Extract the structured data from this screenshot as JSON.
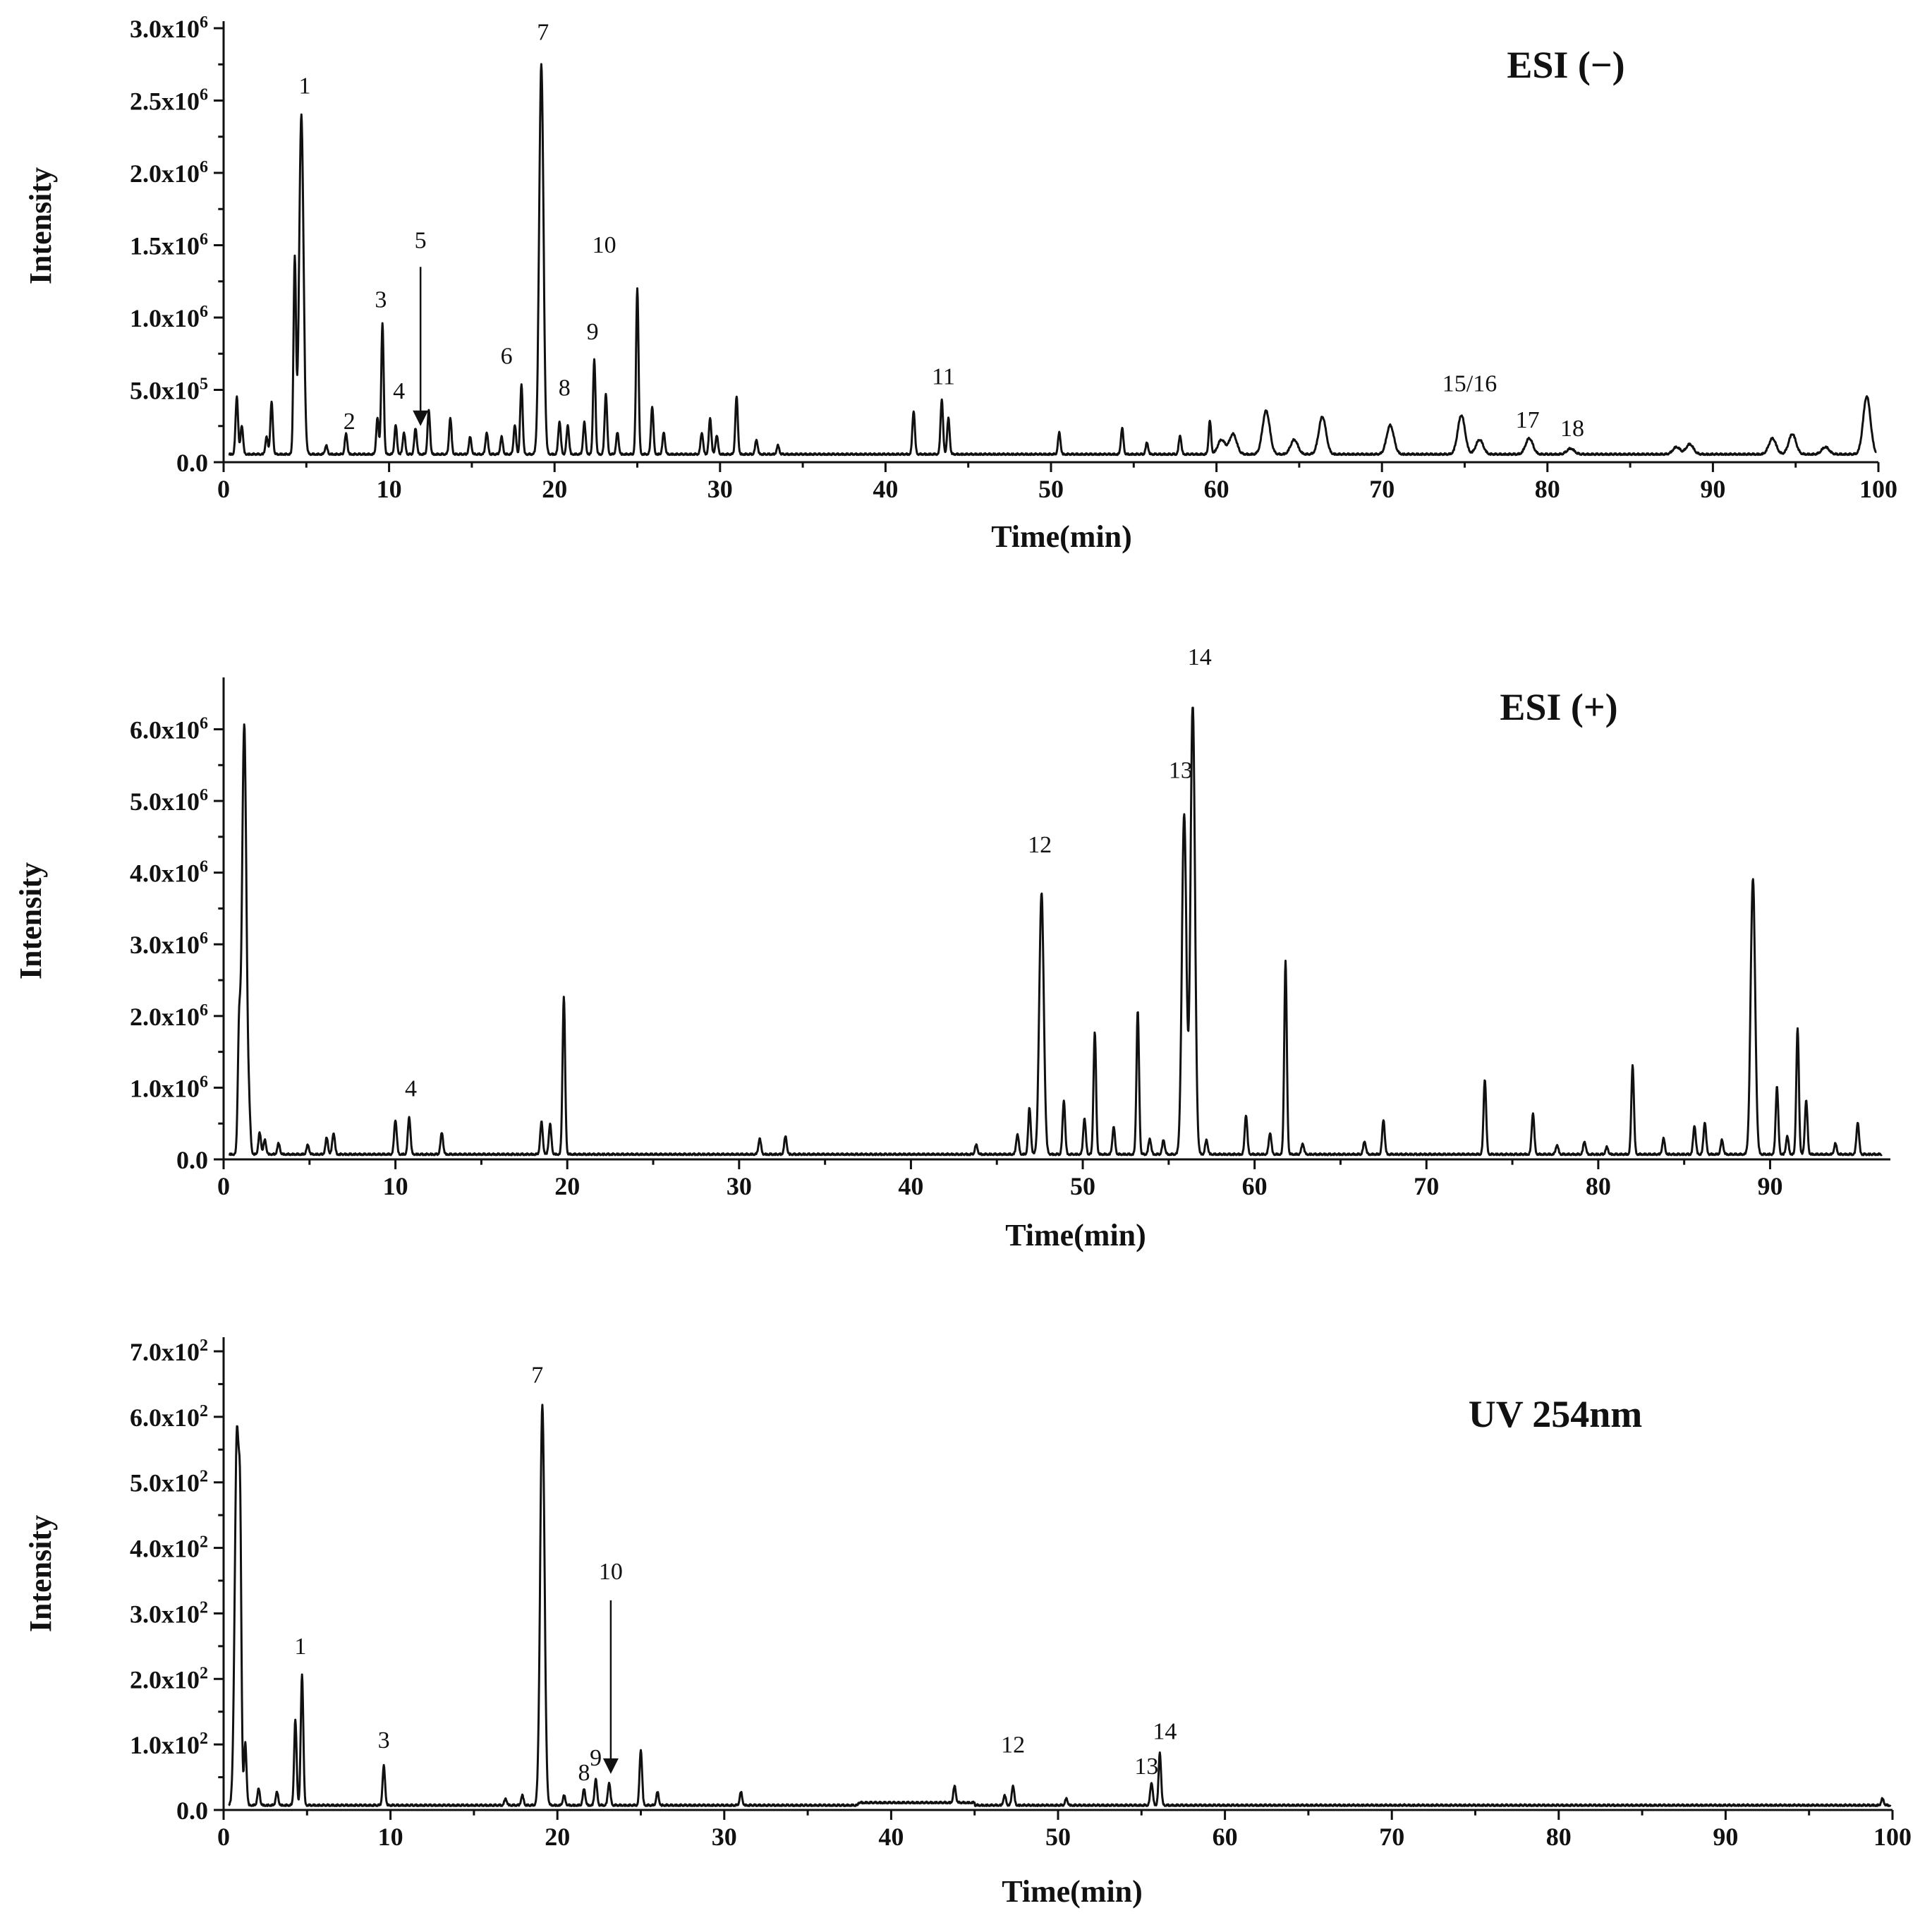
{
  "chart_data": [
    {
      "type": "line",
      "title": "ESI (−)",
      "xlabel": "Time(min)",
      "ylabel": "Intensity",
      "xlim": [
        0,
        100
      ],
      "ylim": [
        0,
        3000000
      ],
      "xticks": [
        0,
        10,
        20,
        30,
        40,
        50,
        60,
        70,
        80,
        90,
        100
      ],
      "xtick_labels": [
        "0",
        "10",
        "20",
        "30",
        "40",
        "50",
        "60",
        "70",
        "80",
        "90",
        "100"
      ],
      "yticks": [
        0,
        500000,
        1000000,
        1500000,
        2000000,
        2500000,
        3000000
      ],
      "ytick_labels": [
        {
          "mant": "0.0",
          "exp": ""
        },
        {
          "mant": "5.0x10",
          "exp": "5"
        },
        {
          "mant": "1.0x10",
          "exp": "6"
        },
        {
          "mant": "1.5x10",
          "exp": "6"
        },
        {
          "mant": "2.0x10",
          "exp": "6"
        },
        {
          "mant": "2.5x10",
          "exp": "6"
        },
        {
          "mant": "3.0x10",
          "exp": "6"
        }
      ],
      "grid": false,
      "baseline": 50000,
      "peaks": [
        [
          0.8,
          400000
        ],
        [
          1.1,
          200000
        ],
        [
          2.6,
          120000
        ],
        [
          2.9,
          360000
        ],
        [
          4.3,
          1350000
        ],
        [
          4.7,
          2350000
        ],
        [
          6.2,
          60000
        ],
        [
          7.4,
          140000
        ],
        [
          9.3,
          250000
        ],
        [
          9.6,
          900000
        ],
        [
          10.4,
          200000
        ],
        [
          10.9,
          150000
        ],
        [
          11.6,
          180000
        ],
        [
          12.4,
          300000
        ],
        [
          13.7,
          250000
        ],
        [
          14.9,
          120000
        ],
        [
          15.9,
          150000
        ],
        [
          16.8,
          120000
        ],
        [
          17.6,
          200000
        ],
        [
          18.0,
          480000
        ],
        [
          19.2,
          2700000
        ],
        [
          20.3,
          230000
        ],
        [
          20.8,
          200000
        ],
        [
          21.8,
          220000
        ],
        [
          22.4,
          650000
        ],
        [
          23.1,
          420000
        ],
        [
          23.8,
          150000
        ],
        [
          25.0,
          1150000
        ],
        [
          25.9,
          330000
        ],
        [
          26.6,
          150000
        ],
        [
          28.9,
          150000
        ],
        [
          29.4,
          250000
        ],
        [
          29.8,
          130000
        ],
        [
          31.0,
          400000
        ],
        [
          32.2,
          100000
        ],
        [
          33.5,
          60000
        ],
        [
          41.7,
          300000
        ],
        [
          43.4,
          380000
        ],
        [
          43.8,
          250000
        ],
        [
          50.5,
          150000
        ],
        [
          54.3,
          180000
        ],
        [
          55.8,
          80000
        ],
        [
          57.8,
          130000
        ],
        [
          59.6,
          230000
        ],
        [
          60.3,
          100000
        ],
        [
          61.0,
          140000
        ],
        [
          63.0,
          300000
        ],
        [
          64.7,
          100000
        ],
        [
          66.4,
          260000
        ],
        [
          70.5,
          200000
        ],
        [
          74.8,
          270000
        ],
        [
          75.9,
          100000
        ],
        [
          78.9,
          110000
        ],
        [
          81.4,
          40000
        ],
        [
          87.8,
          50000
        ],
        [
          88.6,
          70000
        ],
        [
          93.6,
          110000
        ],
        [
          94.8,
          140000
        ],
        [
          96.8,
          50000
        ],
        [
          99.3,
          400000
        ]
      ],
      "peak_labels": [
        {
          "text": "1",
          "x": 4.9,
          "y": 2550000
        },
        {
          "text": "2",
          "x": 7.6,
          "y": 230000
        },
        {
          "text": "3",
          "x": 9.5,
          "y": 1070000
        },
        {
          "text": "4",
          "x": 10.6,
          "y": 440000
        },
        {
          "text": "5",
          "x": 11.9,
          "y": 1480000
        },
        {
          "text": "6",
          "x": 17.1,
          "y": 680000
        },
        {
          "text": "7",
          "x": 19.3,
          "y": 2920000
        },
        {
          "text": "8",
          "x": 20.6,
          "y": 460000
        },
        {
          "text": "9",
          "x": 22.3,
          "y": 850000
        },
        {
          "text": "10",
          "x": 23.0,
          "y": 1450000
        },
        {
          "text": "11",
          "x": 43.5,
          "y": 540000
        },
        {
          "text": "15/16",
          "x": 75.3,
          "y": 490000
        },
        {
          "text": "17",
          "x": 78.8,
          "y": 240000
        },
        {
          "text": "18",
          "x": 81.5,
          "y": 180000
        }
      ],
      "arrows": [
        {
          "x": 11.9,
          "y_from": 1350000,
          "y_to": 250000
        }
      ]
    },
    {
      "type": "line",
      "title": "ESI (+)",
      "xlabel": "Time(min)",
      "ylabel": "Intensity",
      "xlim": [
        0,
        97
      ],
      "ylim": [
        0,
        6300000
      ],
      "xticks": [
        0,
        10,
        20,
        30,
        40,
        50,
        60,
        70,
        80,
        90
      ],
      "xtick_labels": [
        "0",
        "10",
        "20",
        "30",
        "40",
        "50",
        "60",
        "70",
        "80",
        "90"
      ],
      "yticks": [
        0,
        1000000,
        2000000,
        3000000,
        4000000,
        5000000,
        6000000
      ],
      "ytick_labels": [
        {
          "mant": "0.0",
          "exp": ""
        },
        {
          "mant": "1.0x10",
          "exp": "6"
        },
        {
          "mant": "2.0x10",
          "exp": "6"
        },
        {
          "mant": "3.0x10",
          "exp": "6"
        },
        {
          "mant": "4.0x10",
          "exp": "6"
        },
        {
          "mant": "5.0x10",
          "exp": "6"
        },
        {
          "mant": "6.0x10",
          "exp": "6"
        }
      ],
      "grid": false,
      "baseline": 60000,
      "peaks": [
        [
          0.9,
          1600000
        ],
        [
          1.2,
          6000000
        ],
        [
          1.5,
          400000
        ],
        [
          2.1,
          300000
        ],
        [
          2.4,
          200000
        ],
        [
          3.2,
          150000
        ],
        [
          4.9,
          130000
        ],
        [
          6.0,
          230000
        ],
        [
          6.4,
          300000
        ],
        [
          10.0,
          480000
        ],
        [
          10.8,
          520000
        ],
        [
          12.7,
          300000
        ],
        [
          18.5,
          450000
        ],
        [
          19.0,
          420000
        ],
        [
          19.8,
          2200000
        ],
        [
          31.2,
          220000
        ],
        [
          32.7,
          250000
        ],
        [
          43.8,
          130000
        ],
        [
          46.2,
          280000
        ],
        [
          46.9,
          650000
        ],
        [
          47.6,
          3650000
        ],
        [
          48.9,
          750000
        ],
        [
          50.1,
          500000
        ],
        [
          50.7,
          1700000
        ],
        [
          51.8,
          380000
        ],
        [
          53.2,
          2000000
        ],
        [
          53.9,
          220000
        ],
        [
          54.7,
          200000
        ],
        [
          55.9,
          4750000
        ],
        [
          56.4,
          6300000
        ],
        [
          57.2,
          200000
        ],
        [
          59.5,
          550000
        ],
        [
          60.9,
          300000
        ],
        [
          61.8,
          2700000
        ],
        [
          62.8,
          150000
        ],
        [
          66.4,
          180000
        ],
        [
          67.5,
          480000
        ],
        [
          73.4,
          1050000
        ],
        [
          76.2,
          580000
        ],
        [
          77.6,
          130000
        ],
        [
          79.2,
          180000
        ],
        [
          80.5,
          100000
        ],
        [
          82.0,
          1250000
        ],
        [
          83.8,
          220000
        ],
        [
          85.6,
          400000
        ],
        [
          86.2,
          450000
        ],
        [
          87.2,
          200000
        ],
        [
          89.0,
          3850000
        ],
        [
          90.4,
          950000
        ],
        [
          91.0,
          250000
        ],
        [
          91.6,
          1750000
        ],
        [
          92.1,
          750000
        ],
        [
          93.8,
          150000
        ],
        [
          95.1,
          450000
        ]
      ],
      "peak_labels": [
        {
          "text": "4",
          "x": 10.9,
          "y": 880000
        },
        {
          "text": "12",
          "x": 47.5,
          "y": 4280000
        },
        {
          "text": "13",
          "x": 55.7,
          "y": 5320000
        },
        {
          "text": "14",
          "x": 56.8,
          "y": 6900000
        }
      ],
      "arrows": []
    },
    {
      "type": "line",
      "title": "UV 254nm",
      "xlabel": "Time(min)",
      "ylabel": "Intensity",
      "xlim": [
        0,
        100
      ],
      "ylim": [
        0,
        700
      ],
      "xticks": [
        0,
        10,
        20,
        30,
        40,
        50,
        60,
        70,
        80,
        90,
        100
      ],
      "xtick_labels": [
        "0",
        "10",
        "20",
        "30",
        "40",
        "50",
        "60",
        "70",
        "80",
        "90",
        "100"
      ],
      "yticks": [
        0,
        100,
        200,
        300,
        400,
        500,
        600,
        700
      ],
      "ytick_labels": [
        {
          "mant": "0.0",
          "exp": ""
        },
        {
          "mant": "1.0x10",
          "exp": "2"
        },
        {
          "mant": "2.0x10",
          "exp": "2"
        },
        {
          "mant": "3.0x10",
          "exp": "2"
        },
        {
          "mant": "4.0x10",
          "exp": "2"
        },
        {
          "mant": "5.0x10",
          "exp": "2"
        },
        {
          "mant": "6.0x10",
          "exp": "2"
        },
        {
          "mant": "7.0x10",
          "exp": "2"
        }
      ],
      "grid": false,
      "baseline": 10,
      "peaks": [
        [
          0.8,
          570000
        ],
        [
          1.0,
          300000
        ],
        [
          1.3,
          95000
        ],
        [
          2.1,
          25000
        ],
        [
          3.2,
          20000
        ],
        [
          4.3,
          130000
        ],
        [
          4.7,
          200000
        ],
        [
          9.6,
          60000
        ],
        [
          16.9,
          10000
        ],
        [
          17.9,
          15000
        ],
        [
          19.1,
          610000
        ],
        [
          20.4,
          15000
        ],
        [
          21.6,
          25000
        ],
        [
          22.3,
          40000
        ],
        [
          23.1,
          35000
        ],
        [
          25.0,
          85000
        ],
        [
          26.0,
          20000
        ],
        [
          31.0,
          20000
        ],
        [
          43.8,
          25000
        ],
        [
          46.8,
          15000
        ],
        [
          47.3,
          30000
        ],
        [
          50.5,
          10000
        ],
        [
          55.6,
          35000
        ],
        [
          56.1,
          80000
        ],
        [
          99.4,
          10000
        ]
      ],
      "peak_labels": [
        {
          "text": "1",
          "x": 4.6,
          "y": 238
        },
        {
          "text": "3",
          "x": 9.6,
          "y": 95
        },
        {
          "text": "7",
          "x": 18.8,
          "y": 652
        },
        {
          "text": "8",
          "x": 21.6,
          "y": 45
        },
        {
          "text": "9",
          "x": 22.3,
          "y": 68
        },
        {
          "text": "10",
          "x": 23.2,
          "y": 352
        },
        {
          "text": "12",
          "x": 47.3,
          "y": 88
        },
        {
          "text": "13",
          "x": 55.3,
          "y": 55
        },
        {
          "text": "14",
          "x": 56.4,
          "y": 108
        }
      ],
      "arrows": [
        {
          "x": 23.2,
          "y_from": 320,
          "y_to": 55
        }
      ]
    }
  ]
}
